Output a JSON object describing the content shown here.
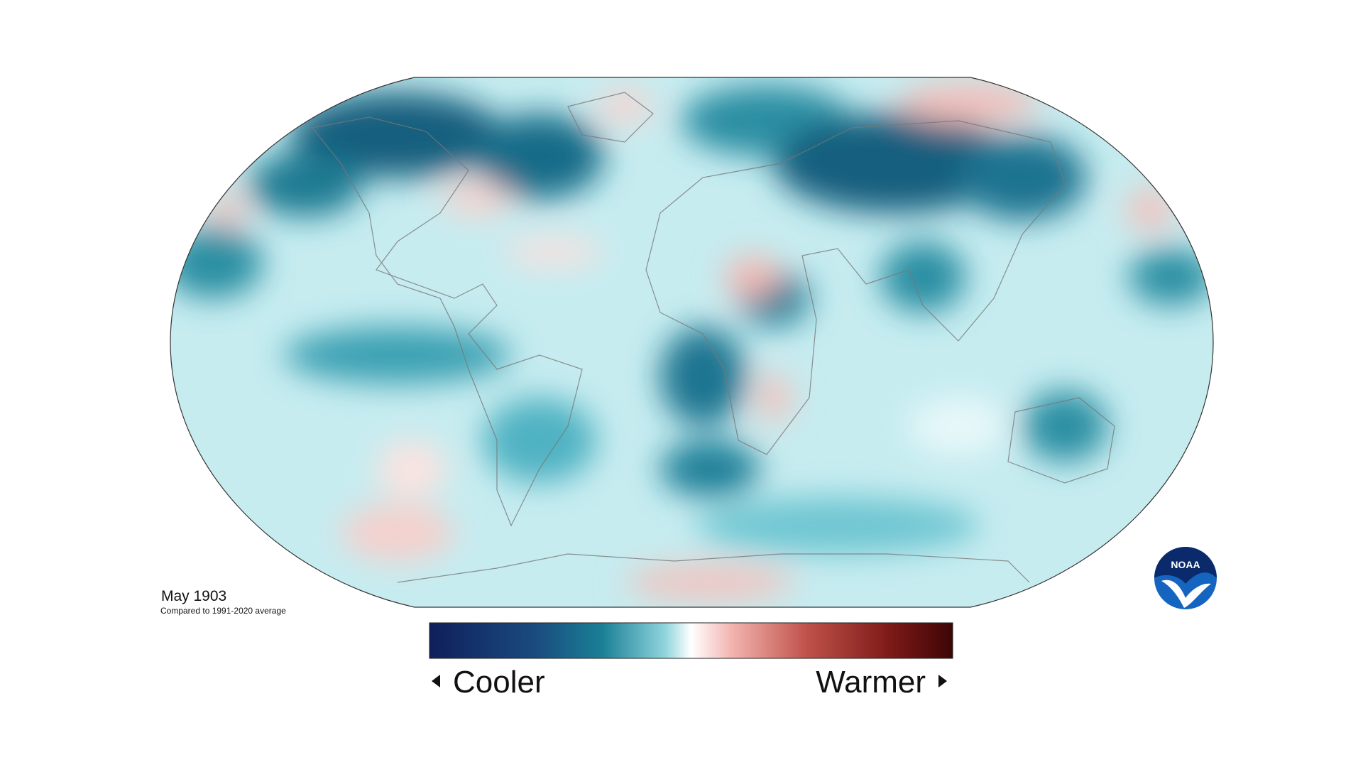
{
  "map": {
    "title": "May 1903",
    "subtitle": "Compared to 1991-2020 average"
  },
  "legend": {
    "low": "Cooler",
    "high": "Warmer"
  },
  "logo": {
    "text": "NOAA"
  }
}
